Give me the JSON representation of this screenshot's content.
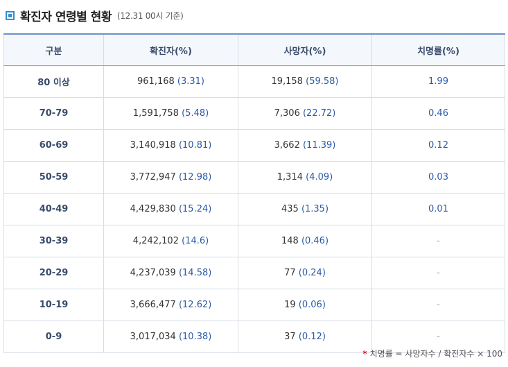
{
  "title": "확진자 연령별 현황",
  "subtitle": "(12.31 00시 기준)",
  "columns": [
    "구분",
    "확진자(%)",
    "사망자(%)",
    "치명률(%)"
  ],
  "rows": [
    {
      "group": "80 이상",
      "confirmed": "961,168",
      "confirmed_pct": "(3.31)",
      "deaths": "19,158",
      "deaths_pct": "(59.58)",
      "rate": "1.99"
    },
    {
      "group": "70-79",
      "confirmed": "1,591,758",
      "confirmed_pct": "(5.48)",
      "deaths": "7,306",
      "deaths_pct": "(22.72)",
      "rate": "0.46"
    },
    {
      "group": "60-69",
      "confirmed": "3,140,918",
      "confirmed_pct": "(10.81)",
      "deaths": "3,662",
      "deaths_pct": "(11.39)",
      "rate": "0.12"
    },
    {
      "group": "50-59",
      "confirmed": "3,772,947",
      "confirmed_pct": "(12.98)",
      "deaths": "1,314",
      "deaths_pct": "(4.09)",
      "rate": "0.03"
    },
    {
      "group": "40-49",
      "confirmed": "4,429,830",
      "confirmed_pct": "(15.24)",
      "deaths": "435",
      "deaths_pct": "(1.35)",
      "rate": "0.01"
    },
    {
      "group": "30-39",
      "confirmed": "4,242,102",
      "confirmed_pct": "(14.6)",
      "deaths": "148",
      "deaths_pct": "(0.46)",
      "rate": "-"
    },
    {
      "group": "20-29",
      "confirmed": "4,237,039",
      "confirmed_pct": "(14.58)",
      "deaths": "77",
      "deaths_pct": "(0.24)",
      "rate": "-"
    },
    {
      "group": "10-19",
      "confirmed": "3,666,477",
      "confirmed_pct": "(12.62)",
      "deaths": "19",
      "deaths_pct": "(0.06)",
      "rate": "-"
    },
    {
      "group": "0-9",
      "confirmed": "3,017,034",
      "confirmed_pct": "(10.38)",
      "deaths": "37",
      "deaths_pct": "(0.12)",
      "rate": "-"
    }
  ],
  "footnote": {
    "mark": "*",
    "text": "치명률 = 사망자수 / 확진자수 × 100"
  },
  "colors": {
    "accent": "#2f8fd0",
    "header_bg": "#f4f7fb",
    "header_border": "#6a91c6",
    "value_blue": "#2b5aa6",
    "footnote_mark": "#e02020"
  },
  "icons": {
    "title": "square-bullet-icon"
  }
}
